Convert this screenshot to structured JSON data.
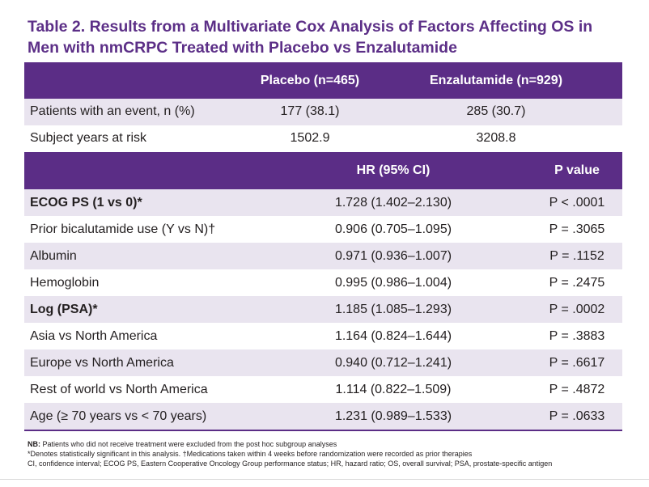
{
  "title_line1": "Table 2. Results from a Multivariate Cox Analysis of Factors Affecting OS in",
  "title_line2": "Men with nmCRPC Treated with Placebo vs Enzalutamide",
  "summary": {
    "header": {
      "placebo": "Placebo (n=465)",
      "enzalutamide": "Enzalutamide (n=929)"
    },
    "rows": [
      {
        "label": "Patients with an event, n (%)",
        "placebo": "177 (38.1)",
        "enzalutamide": "285 (30.7)"
      },
      {
        "label": "Subject years at risk",
        "placebo": "1502.9",
        "enzalutamide": "3208.8"
      }
    ]
  },
  "cox": {
    "header": {
      "hr": "HR (95% CI)",
      "p": "P value"
    },
    "rows": [
      {
        "label": "ECOG PS (1 vs 0)*",
        "hr": "1.728 (1.402–2.130)",
        "p": "P < .0001"
      },
      {
        "label": "Prior bicalutamide use (Y vs N)†",
        "hr": "0.906 (0.705–1.095)",
        "p": "P = .3065"
      },
      {
        "label": "Albumin",
        "hr": "0.971 (0.936–1.007)",
        "p": "P = .1152"
      },
      {
        "label": "Hemoglobin",
        "hr": "0.995 (0.986–1.004)",
        "p": "P = .2475"
      },
      {
        "label": "Log (PSA)*",
        "hr": "1.185 (1.085–1.293)",
        "p": "P = .0002"
      },
      {
        "label": "Asia vs North America",
        "hr": "1.164 (0.824–1.644)",
        "p": "P = .3883"
      },
      {
        "label": "Europe vs North America",
        "hr": "0.940 (0.712–1.241)",
        "p": "P = .6617"
      },
      {
        "label": "Rest of world vs North America",
        "hr": "1.114 (0.822–1.509)",
        "p": "P = .4872"
      },
      {
        "label": "Age (≥ 70 years vs < 70 years)",
        "hr": "1.231 (0.989–1.533)",
        "p": "P = .0633"
      }
    ]
  },
  "footnotes": {
    "nb_label": "NB:",
    "nb_text": " Patients who did not receive treatment were excluded from the post hoc subgroup analyses",
    "line2": "*Denotes statistically significant in this analysis. †Medications taken within 4 weeks before randomization were recorded as prior therapies",
    "line3": "CI, confidence interval; ECOG PS, Eastern Cooperative Oncology Group performance status; HR, hazard ratio; OS, overall survival; PSA, prostate-specific antigen"
  },
  "colors": {
    "title": "#5c2f87",
    "header_bg": "#5b2d86",
    "shaded_row": "#e9e4ef"
  }
}
